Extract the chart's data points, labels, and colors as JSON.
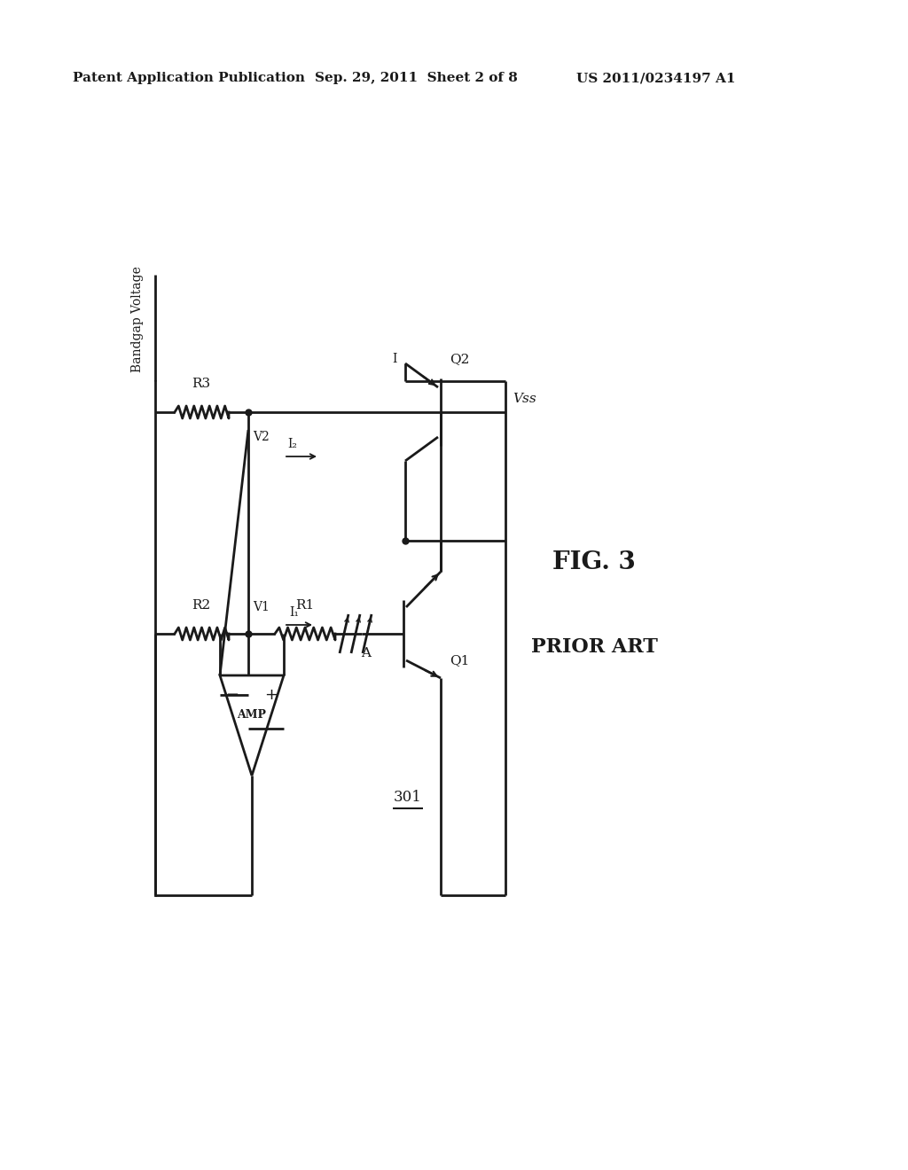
{
  "bg_color": "#ffffff",
  "line_color": "#1a1a1a",
  "header_left": "Patent Application Publication",
  "header_mid": "Sep. 29, 2011  Sheet 2 of 8",
  "header_right": "US 2011/0234197 A1",
  "fig_label": "FIG. 3",
  "prior_art": "PRIOR ART",
  "circuit_label": "301",
  "bandgap_label": "Bandgap Voltage",
  "vss_label": "Vss",
  "r3_label": "R3",
  "r2_label": "R2",
  "r1_label": "R1",
  "v2_label": "V2",
  "v1_label": "V1",
  "i2_label": "I₂",
  "i1_label": "I₁",
  "q1_label": "Q1",
  "q2_label": "Q2",
  "i_label": "I",
  "a_label": "A",
  "amp_label": "AMP",
  "amp_minus": "−",
  "amp_plus": "+"
}
